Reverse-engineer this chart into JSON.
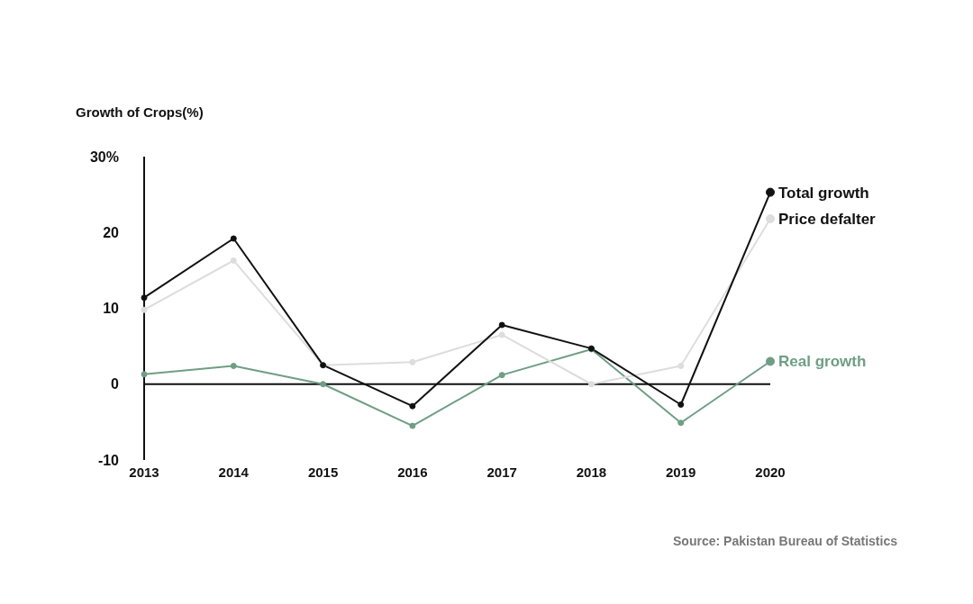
{
  "chart_data": {
    "type": "line",
    "ylabel": "Growth of Crops(%)",
    "categories": [
      "2013",
      "2014",
      "2015",
      "2016",
      "2017",
      "2018",
      "2019",
      "2020"
    ],
    "series": [
      {
        "name": "Total growth",
        "color": "#111111",
        "values": [
          11.4,
          19.2,
          2.5,
          -2.9,
          7.8,
          4.7,
          -2.7,
          25.3
        ]
      },
      {
        "name": "Price defalter",
        "color": "#dddddd",
        "values": [
          9.8,
          16.3,
          2.5,
          2.9,
          6.5,
          0,
          2.4,
          21.8
        ]
      },
      {
        "name": "Real growth",
        "color": "#6f9e85",
        "values": [
          1.3,
          2.4,
          0,
          -5.5,
          1.2,
          4.6,
          -5.1,
          3.0
        ]
      }
    ],
    "ylim": [
      -10,
      30
    ],
    "yticks": [
      -10,
      0,
      10,
      20,
      {
        "value": 30,
        "label": "30%"
      }
    ],
    "ref_lines": [
      {
        "axis": "y",
        "value": 0,
        "color": "#111111"
      }
    ],
    "marker": "circle",
    "line_style": "solid",
    "annotations": [
      "Source: Pakistan Bureau of Statistics"
    ]
  }
}
